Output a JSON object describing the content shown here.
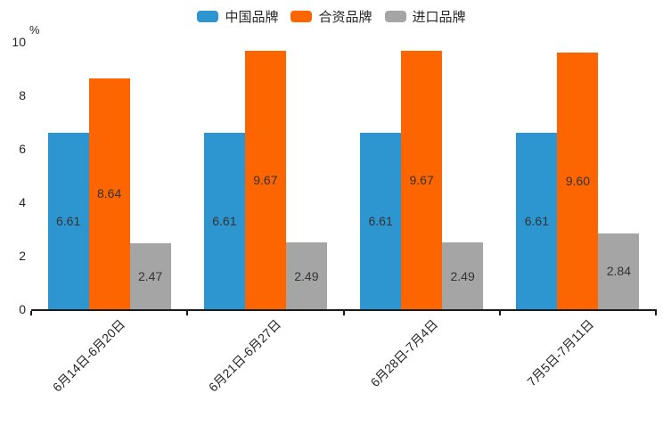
{
  "chart_data": {
    "type": "bar",
    "title": "",
    "xlabel": "",
    "ylabel": "%",
    "categories": [
      "6月14日-6月20日",
      "6月21日-6月27日",
      "6月28日-7月4日",
      "7月5日-7月11日"
    ],
    "series": [
      {
        "name": "中国品牌",
        "color": "#2D96D0",
        "values": [
          6.61,
          6.61,
          6.61,
          6.61
        ]
      },
      {
        "name": "合资品牌",
        "color": "#FD6500",
        "values": [
          8.64,
          9.67,
          9.67,
          9.6
        ]
      },
      {
        "name": "进口品牌",
        "color": "#A5A5A5",
        "values": [
          2.47,
          2.49,
          2.49,
          2.84
        ]
      }
    ],
    "value_label_decimals": 2,
    "ylim": [
      0,
      10
    ],
    "yticks": [
      0,
      2,
      4,
      6,
      8,
      10
    ],
    "grid": false,
    "legend_position": "top"
  }
}
